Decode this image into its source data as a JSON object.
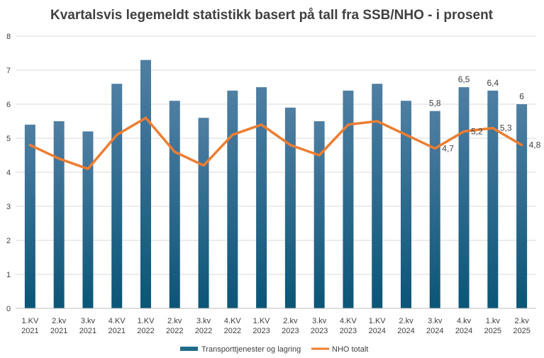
{
  "chart_data": {
    "type": "bar",
    "title": "Kvartalsvis legemeldt statistikk basert på tall fra SSB/NHO - i prosent",
    "categories": [
      [
        "1.KV",
        "2021"
      ],
      [
        "2.kv",
        "2021"
      ],
      [
        "3.kv",
        "2021"
      ],
      [
        "4.KV",
        "2021"
      ],
      [
        "1.KV",
        "2022"
      ],
      [
        "2.kv",
        "2022"
      ],
      [
        "3.kv",
        "2022"
      ],
      [
        "4.KV",
        "2022"
      ],
      [
        "1.KV",
        "2023"
      ],
      [
        "2.kv",
        "2023"
      ],
      [
        "3.kv",
        "2023"
      ],
      [
        "4.KV",
        "2023"
      ],
      [
        "1.KV",
        "2024"
      ],
      [
        "2.kv",
        "2024"
      ],
      [
        "3.kv",
        "2024"
      ],
      [
        "4.kv",
        "2024"
      ],
      [
        "1.kv",
        "2025"
      ],
      [
        "2.kv",
        "2025"
      ]
    ],
    "series": [
      {
        "name": "Transporttjenester og lagring",
        "type": "bar",
        "color": "#1f6b8a",
        "values": [
          5.4,
          5.5,
          5.2,
          6.6,
          7.3,
          6.1,
          5.6,
          6.4,
          6.5,
          5.9,
          5.5,
          6.4,
          6.6,
          6.1,
          5.8,
          6.5,
          6.4,
          6.0
        ],
        "data_labels": [
          null,
          null,
          null,
          null,
          null,
          null,
          null,
          null,
          null,
          null,
          null,
          null,
          null,
          null,
          "5,8",
          "6,5",
          "6,4",
          "6"
        ]
      },
      {
        "name": "NHO totalt",
        "type": "line",
        "color": "#ed7d31",
        "values": [
          4.8,
          4.4,
          4.1,
          5.1,
          5.6,
          4.6,
          4.2,
          5.1,
          5.4,
          4.8,
          4.5,
          5.4,
          5.5,
          5.1,
          4.7,
          5.2,
          5.3,
          4.8
        ],
        "data_labels": [
          null,
          null,
          null,
          null,
          null,
          null,
          null,
          null,
          null,
          null,
          null,
          null,
          null,
          null,
          "4,7",
          "5,2",
          "5,3",
          "4,8"
        ]
      }
    ],
    "ylim": [
      0,
      8
    ],
    "yticks": [
      "0",
      "1",
      "2",
      "3",
      "4",
      "5",
      "6",
      "7",
      "8"
    ],
    "grid": true,
    "legend_position": "bottom"
  }
}
